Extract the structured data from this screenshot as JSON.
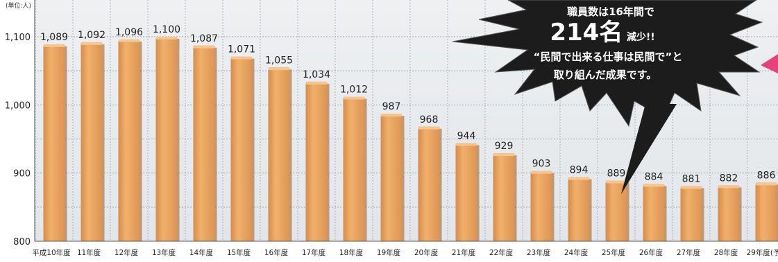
{
  "chart_data": {
    "type": "bar",
    "unit_label": "(単位:人)",
    "categories": [
      "平成10年度",
      "11年度",
      "12年度",
      "13年度",
      "14年度",
      "15年度",
      "16年度",
      "17年度",
      "18年度",
      "19年度",
      "20年度",
      "21年度",
      "22年度",
      "23年度",
      "24年度",
      "25年度",
      "26年度",
      "27年度",
      "28年度",
      "29年度(予"
    ],
    "values": [
      1089,
      1092,
      1096,
      1100,
      1087,
      1071,
      1055,
      1034,
      1012,
      987,
      968,
      944,
      929,
      903,
      894,
      889,
      884,
      881,
      882,
      886
    ],
    "value_labels": [
      "1,089",
      "1,092",
      "1,096",
      "1,100",
      "1,087",
      "1,071",
      "1,055",
      "1,034",
      "1,012",
      "987",
      "968",
      "944",
      "929",
      "903",
      "894",
      "889",
      "884",
      "881",
      "882",
      "886"
    ],
    "ylim": [
      800,
      1100
    ],
    "yticks": [
      800,
      900,
      1000,
      1100
    ],
    "ytick_labels": [
      "800",
      "900",
      "1,000",
      "1,100"
    ],
    "grid": true,
    "colors": {
      "bar": "#e8a05c",
      "bar_shadow": "#b8733a",
      "plot_bg": "#e7ebee",
      "burst": "#1c1c1c",
      "accent": "#e8417a"
    },
    "callout": {
      "line1": "職員数は16年間で",
      "line2_big": "214名",
      "line2_small": "減少!!",
      "line3": "“民間で出来る仕事は民間で”と",
      "line4": "取り組んだ成果です。"
    }
  }
}
